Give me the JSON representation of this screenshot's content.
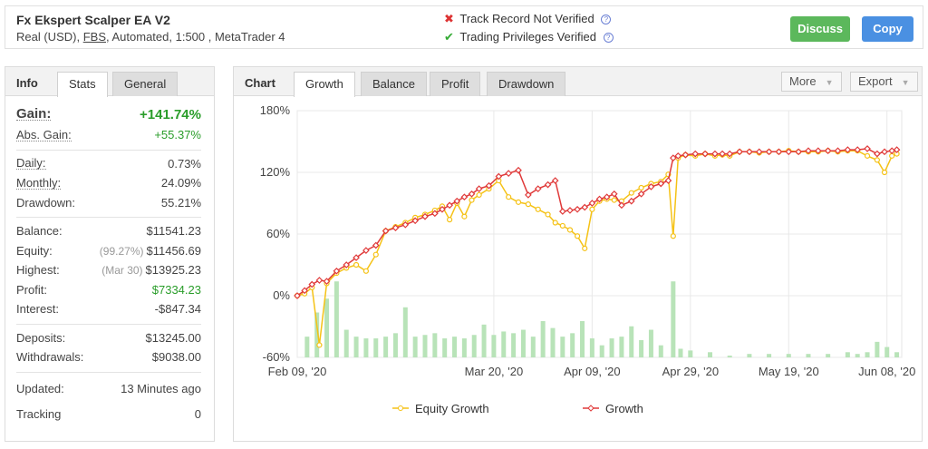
{
  "header": {
    "system_name": "Fx Ekspert Scalper EA V2",
    "sub_prefix": "Real (USD),",
    "broker": "FBS",
    "sub_suffix": ", Automated, 1:500 , MetaTrader 4",
    "track_record": "Track Record Not Verified",
    "trading_privileges": "Trading Privileges Verified",
    "discuss_label": "Discuss",
    "copy_label": "Copy",
    "colors": {
      "discuss": "#5cb85c",
      "copy": "#4a90e2",
      "not_verified": "#dd3333",
      "verified": "#33aa33"
    }
  },
  "info": {
    "title": "Info",
    "tabs": [
      "Stats",
      "General"
    ],
    "active_tab": "Stats",
    "gain": {
      "label": "Gain:",
      "value": "+141.74%"
    },
    "abs_gain": {
      "label": "Abs. Gain:",
      "value": "+55.37%"
    },
    "daily": {
      "label": "Daily:",
      "value": "0.73%"
    },
    "monthly": {
      "label": "Monthly:",
      "value": "24.09%"
    },
    "drawdown": {
      "label": "Drawdown:",
      "value": "55.21%"
    },
    "balance": {
      "label": "Balance:",
      "value": "$11541.23"
    },
    "equity": {
      "label": "Equity:",
      "note": "(99.27%)",
      "value": "$11456.69"
    },
    "highest": {
      "label": "Highest:",
      "note": "(Mar 30)",
      "value": "$13925.23"
    },
    "profit": {
      "label": "Profit:",
      "value": "$7334.23"
    },
    "interest": {
      "label": "Interest:",
      "value": "-$847.34"
    },
    "deposits": {
      "label": "Deposits:",
      "value": "$13245.00"
    },
    "withdrawals": {
      "label": "Withdrawals:",
      "value": "$9038.00"
    },
    "updated": {
      "label": "Updated:",
      "value": "13 Minutes ago"
    },
    "tracking": {
      "label": "Tracking",
      "value": "0"
    }
  },
  "chart_panel": {
    "title": "Chart",
    "tabs": [
      "Growth",
      "Balance",
      "Profit",
      "Drawdown"
    ],
    "active_tab": "Growth",
    "more_label": "More",
    "export_label": "Export"
  },
  "chart_data": {
    "type": "line",
    "ylim": [
      -60,
      180
    ],
    "yticks": [
      180,
      120,
      60,
      0,
      -60
    ],
    "ytick_labels": [
      "180%",
      "120%",
      "60%",
      "0%",
      "-60%"
    ],
    "xticks": [
      0,
      40,
      60,
      80,
      100,
      120
    ],
    "xtick_labels": [
      "Feb 09, '20",
      "Mar 20, '20",
      "Apr 09, '20",
      "Apr 29, '20",
      "May 19, '20",
      "Jun 08, '20"
    ],
    "xlim": [
      0,
      123
    ],
    "grid": true,
    "legend_position": "bottom",
    "series": [
      {
        "name": "Equity Growth",
        "color": "#f5c216",
        "x": [
          0,
          1.5,
          3,
          4.5,
          6,
          8,
          10,
          12,
          14,
          16,
          18,
          20,
          22,
          24,
          26,
          28,
          29.5,
          31,
          32.5,
          34,
          35.5,
          37,
          39,
          41,
          43,
          45,
          47,
          49,
          51,
          52.5,
          54,
          55.5,
          57,
          58.5,
          60,
          61.5,
          63,
          64.5,
          66,
          68,
          70,
          72,
          74,
          75.5,
          76.5,
          77.5,
          79,
          81,
          83,
          85,
          86.5,
          88,
          90,
          92,
          94,
          96,
          98,
          100,
          102,
          104,
          106,
          108,
          110,
          112,
          114,
          116,
          118,
          119.5,
          121,
          122
        ],
        "y": [
          0,
          2,
          8,
          -48,
          12,
          22,
          27,
          30,
          24,
          40,
          63,
          67,
          71,
          76,
          79,
          83,
          87,
          74,
          90,
          77,
          93,
          98,
          104,
          112,
          96,
          91,
          89,
          84,
          79,
          71,
          68,
          64,
          58,
          46,
          84,
          92,
          94,
          93,
          92,
          100,
          105,
          109,
          111,
          118,
          58,
          134,
          137,
          136,
          138,
          136,
          137,
          136,
          140,
          140,
          139,
          140,
          140,
          141,
          140,
          140,
          140,
          141,
          140,
          141,
          141,
          136,
          132,
          120,
          136,
          138
        ]
      },
      {
        "name": "Growth",
        "color": "#e03a3a",
        "x": [
          0,
          1.5,
          3,
          4.5,
          6,
          8,
          10,
          12,
          14,
          16,
          18,
          20,
          22,
          24,
          26,
          28,
          29.5,
          31,
          32.5,
          34,
          35.5,
          37,
          39,
          41,
          43,
          45,
          47,
          49,
          51,
          52.5,
          54,
          55.5,
          57,
          58.5,
          60,
          61.5,
          63,
          64.5,
          66,
          68,
          70,
          72,
          74,
          75.5,
          76.5,
          77.5,
          79,
          81,
          83,
          85,
          86.5,
          88,
          90,
          92,
          94,
          96,
          98,
          100,
          102,
          104,
          106,
          108,
          110,
          112,
          114,
          116,
          118,
          119.5,
          121,
          122
        ],
        "y": [
          0,
          5,
          11,
          15,
          14,
          24,
          30,
          37,
          44,
          49,
          63,
          66,
          69,
          73,
          77,
          80,
          84,
          88,
          92,
          96,
          99,
          104,
          107,
          116,
          119,
          122,
          98,
          104,
          108,
          112,
          82,
          83,
          84,
          86,
          90,
          94,
          96,
          99,
          88,
          92,
          99,
          106,
          109,
          112,
          134,
          136,
          137,
          138,
          138,
          138,
          138,
          138,
          140,
          140,
          140,
          140,
          140,
          140,
          140,
          141,
          141,
          141,
          141,
          142,
          142,
          143,
          138,
          140,
          141,
          142
        ]
      }
    ],
    "volume_bars": {
      "x": [
        2,
        4,
        6,
        8,
        10,
        12,
        14,
        16,
        18,
        20,
        22,
        24,
        26,
        28,
        30,
        32,
        34,
        36,
        38,
        40,
        42,
        44,
        46,
        48,
        50,
        52,
        54,
        56,
        58,
        60,
        62,
        64,
        66,
        68,
        70,
        72,
        74,
        76.5,
        78,
        80,
        84,
        88,
        92,
        96,
        100,
        104,
        108,
        112,
        114,
        116,
        118,
        120,
        122
      ],
      "h": [
        12,
        26,
        34,
        44,
        16,
        12,
        11,
        11,
        12,
        14,
        29,
        12,
        13,
        14,
        11,
        12,
        11,
        13,
        19,
        13,
        15,
        14,
        16,
        12,
        21,
        17,
        12,
        14,
        21,
        11,
        7,
        11,
        12,
        18,
        10,
        16,
        7,
        44,
        5,
        4,
        3,
        1,
        2,
        2,
        2,
        2,
        2,
        3,
        2,
        3,
        9,
        6,
        3
      ]
    }
  }
}
